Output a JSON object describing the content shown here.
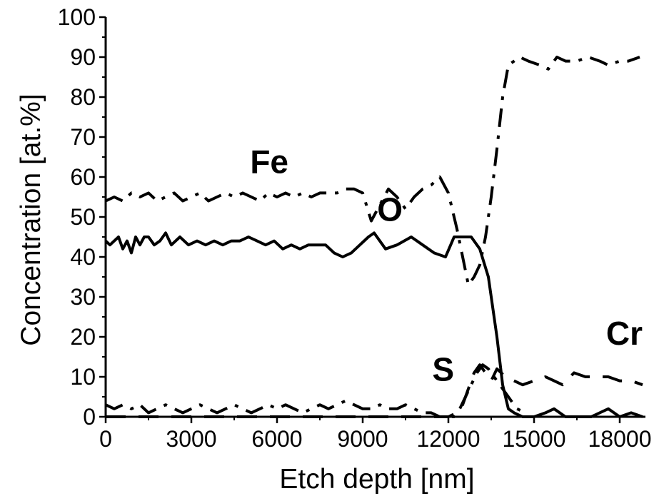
{
  "chart_data": {
    "type": "line",
    "title": "",
    "xlabel": "Etch depth [nm]",
    "ylabel": "Concentration [at.%]",
    "xlim": [
      0,
      18900
    ],
    "ylim": [
      0,
      100
    ],
    "x_ticks": [
      0,
      3000,
      6000,
      9000,
      12000,
      15000,
      18000
    ],
    "x_tick_labels": [
      "0",
      "3000",
      "6000",
      "9000",
      "12000",
      "15000",
      "18000"
    ],
    "y_ticks": [
      0,
      10,
      20,
      30,
      40,
      50,
      60,
      70,
      80,
      90,
      100
    ],
    "y_tick_labels": [
      "0",
      "10",
      "20",
      "30",
      "40",
      "50",
      "60",
      "70",
      "80",
      "90",
      "100"
    ],
    "grid": false,
    "series": [
      {
        "name": "Fe",
        "style": "dash-dot",
        "color": "#000000",
        "x": [
          0,
          300,
          600,
          900,
          1200,
          1500,
          1800,
          2100,
          2400,
          2700,
          3000,
          3300,
          3600,
          3900,
          4200,
          4500,
          4800,
          5100,
          5400,
          5700,
          6000,
          6300,
          6600,
          6900,
          7200,
          7500,
          7800,
          8100,
          8400,
          8700,
          9000,
          9300,
          9600,
          9900,
          10200,
          10500,
          10800,
          11100,
          11400,
          11700,
          12000,
          12300,
          12500,
          12700,
          12900,
          13100,
          13300,
          13500,
          13700,
          13900,
          14100,
          14300,
          14500,
          14800,
          15200,
          15500,
          15800,
          16100,
          16500,
          16900,
          17300,
          17600,
          18000,
          18300,
          18700
        ],
        "y": [
          54,
          55,
          54,
          56,
          55,
          56,
          54,
          55,
          56,
          54,
          55,
          56,
          54,
          55,
          56,
          55,
          56,
          55,
          54,
          56,
          55,
          56,
          55,
          56,
          55,
          56,
          56,
          56,
          57,
          57,
          56,
          49,
          53,
          57,
          55,
          52,
          55,
          57,
          58,
          60,
          56,
          47,
          40,
          33,
          35,
          38,
          45,
          55,
          67,
          80,
          88,
          89,
          90,
          89,
          88,
          87,
          90,
          89,
          89,
          90,
          89,
          88,
          89,
          89,
          90
        ]
      },
      {
        "name": "O",
        "style": "solid",
        "color": "#000000",
        "x": [
          0,
          150,
          300,
          450,
          600,
          750,
          900,
          1050,
          1200,
          1350,
          1500,
          1700,
          1900,
          2100,
          2300,
          2600,
          2900,
          3200,
          3500,
          3800,
          4100,
          4400,
          4700,
          5000,
          5300,
          5600,
          5900,
          6200,
          6500,
          6800,
          7100,
          7400,
          7700,
          8000,
          8300,
          8600,
          8900,
          9200,
          9400,
          9800,
          10200,
          10700,
          11100,
          11500,
          11900,
          12200,
          12500,
          12800,
          13100,
          13400,
          13700,
          13900,
          14100,
          14300,
          14600,
          15000,
          15400,
          15700,
          16100,
          16600,
          17000,
          17600,
          18000,
          18400,
          18800
        ],
        "y": [
          44,
          43,
          44,
          45,
          42,
          44,
          41,
          45,
          43,
          45,
          45,
          43,
          44,
          46,
          43,
          45,
          43,
          44,
          43,
          44,
          43,
          44,
          44,
          45,
          44,
          43,
          44,
          42,
          43,
          42,
          43,
          43,
          43,
          41,
          40,
          41,
          43,
          45,
          46,
          42,
          43,
          45,
          43,
          41,
          40,
          45,
          45,
          45,
          42,
          35,
          20,
          8,
          2,
          1,
          0,
          0,
          1,
          2,
          0,
          0,
          0,
          2,
          0,
          1,
          0
        ]
      },
      {
        "name": "S",
        "style": "dash-dot",
        "color": "#000000",
        "x": [
          0,
          300,
          600,
          900,
          1200,
          1500,
          1800,
          2100,
          2400,
          2700,
          3000,
          3300,
          3600,
          3900,
          4200,
          4500,
          4800,
          5100,
          5400,
          5700,
          6000,
          6300,
          6600,
          6900,
          7200,
          7500,
          7800,
          8100,
          8400,
          8700,
          9000,
          9300,
          9600,
          9900,
          10200,
          10500,
          10800,
          11100,
          11400,
          11700,
          12000,
          12200,
          12400,
          12600,
          12800,
          13000,
          13200,
          13400,
          13600,
          13800,
          14000,
          14200,
          14400,
          14700
        ],
        "y": [
          3,
          2,
          3,
          2,
          3,
          1,
          2,
          3,
          2,
          1,
          2,
          3,
          2,
          1,
          2,
          3,
          2,
          1,
          2,
          3,
          2,
          3,
          2,
          1,
          2,
          3,
          2,
          3,
          4,
          3,
          2,
          2,
          3,
          2,
          2,
          3,
          2,
          1,
          1,
          0,
          0,
          0,
          2,
          5,
          8,
          11,
          13,
          12,
          10,
          8,
          6,
          4,
          2,
          1
        ]
      },
      {
        "name": "Cr",
        "style": "dashed",
        "color": "#000000",
        "x": [
          0,
          600,
          1200,
          1800,
          2400,
          3000,
          3600,
          4200,
          4800,
          5400,
          6000,
          6600,
          7200,
          7800,
          8400,
          9000,
          9600,
          10200,
          10800,
          11400,
          12000,
          12300,
          12500,
          12700,
          12900,
          13100,
          13300,
          13500,
          13700,
          14000,
          14300,
          14600,
          15000,
          15400,
          15700,
          16000,
          16400,
          16800,
          17200,
          17600,
          18000,
          18400,
          18800
        ],
        "y": [
          0,
          0,
          0,
          0,
          0,
          0,
          0,
          0,
          0,
          0,
          0,
          0,
          0,
          0,
          0,
          0,
          0,
          0,
          0,
          0,
          0,
          1,
          3,
          7,
          11,
          13,
          11,
          9,
          12,
          10,
          9,
          8,
          9,
          10,
          9,
          8,
          11,
          10,
          10,
          10,
          9,
          9,
          8
        ]
      }
    ],
    "annotations": [
      {
        "text": "Fe",
        "x": 6400,
        "y": 61
      },
      {
        "text": "O",
        "x": 10400,
        "y": 49
      },
      {
        "text": "S",
        "x": 12200,
        "y": 9
      },
      {
        "text": "Cr",
        "x": 18800,
        "y": 18
      }
    ]
  }
}
